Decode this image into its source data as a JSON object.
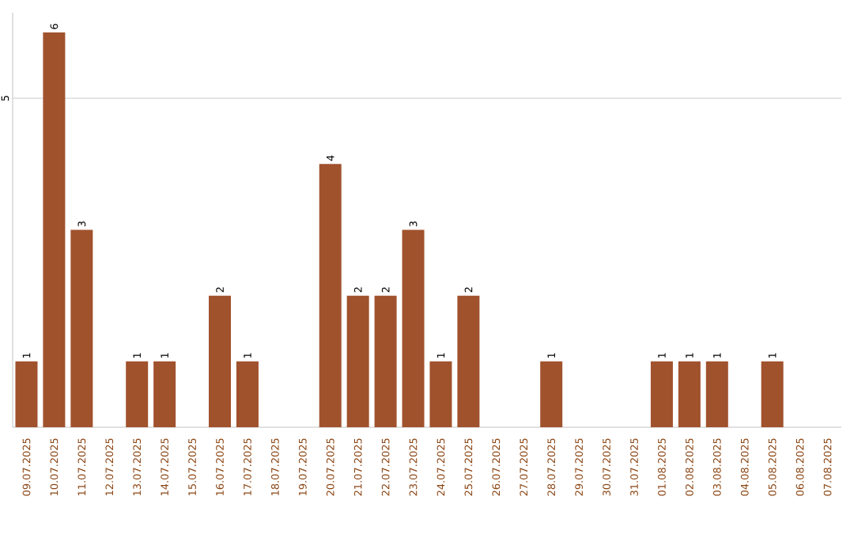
{
  "chart_data": {
    "type": "bar",
    "categories": [
      "09.07.2025",
      "10.07.2025",
      "11.07.2025",
      "12.07.2025",
      "13.07.2025",
      "14.07.2025",
      "15.07.2025",
      "16.07.2025",
      "17.07.2025",
      "18.07.2025",
      "19.07.2025",
      "20.07.2025",
      "21.07.2025",
      "22.07.2025",
      "23.07.2025",
      "24.07.2025",
      "25.07.2025",
      "26.07.2025",
      "27.07.2025",
      "28.07.2025",
      "29.07.2025",
      "30.07.2025",
      "31.07.2025",
      "01.08.2025",
      "02.08.2025",
      "03.08.2025",
      "04.08.2025",
      "05.08.2025",
      "06.08.2025",
      "07.08.2025"
    ],
    "values": [
      1,
      6,
      3,
      0,
      1,
      1,
      0,
      2,
      1,
      0,
      0,
      4,
      2,
      2,
      3,
      1,
      2,
      0,
      0,
      1,
      0,
      0,
      0,
      1,
      1,
      1,
      0,
      1,
      0,
      0
    ],
    "value_labels": [
      "1",
      "6",
      "3",
      null,
      "1",
      "1",
      null,
      "2",
      "1",
      null,
      null,
      "4",
      "2",
      "2",
      "3",
      "1",
      "2",
      null,
      null,
      "1",
      null,
      null,
      null,
      "1",
      "1",
      "1",
      null,
      "1",
      null,
      null
    ],
    "color": "#a0522d",
    "ylim": [
      0,
      6.3
    ],
    "yticks": [
      5
    ],
    "grid": "y"
  }
}
